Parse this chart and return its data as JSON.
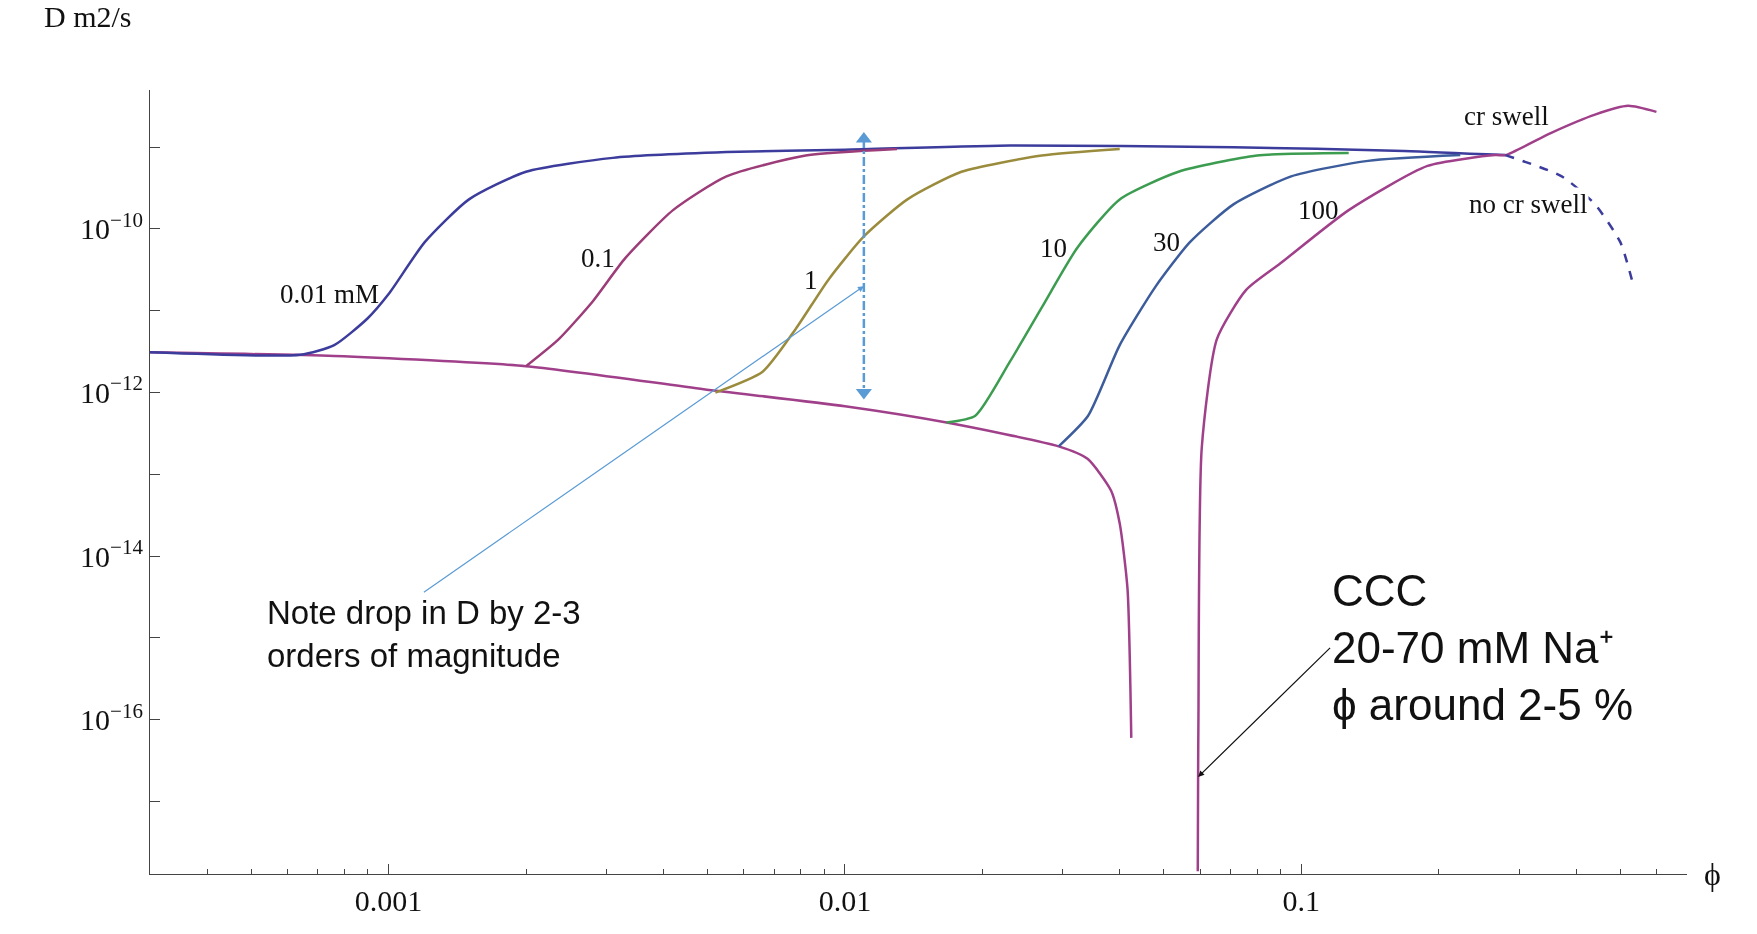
{
  "chart_data": {
    "type": "line",
    "xlabel": "ϕ",
    "ylabel": "D m2/s",
    "log": "xy",
    "marker": "none",
    "xlim": [
      0.0003,
      0.7
    ],
    "xticks": [
      0.001,
      0.01,
      0.1
    ],
    "ylim": [
      1.3e-18,
      5e-09
    ],
    "yticks": [
      {
        "value": 1e-17,
        "label": null
      },
      {
        "value": 1e-16,
        "label": "10$^{−16}$"
      },
      {
        "value": 1e-15,
        "label": null
      },
      {
        "value": 1e-14,
        "label": "10$^{−14}$"
      },
      {
        "value": 1e-13,
        "label": null
      },
      {
        "value": 1e-12,
        "label": "10$^{−12}$"
      },
      {
        "value": 1e-11,
        "label": null
      },
      {
        "value": 1e-10,
        "label": "10$^{−10}$"
      },
      {
        "value": 1e-09,
        "label": null
      }
    ],
    "series": [
      {
        "color": "#a0408a",
        "x": [
          0.0003,
          0.00076,
          0.002,
          0.0049,
          0.01,
          0.0167,
          0.0294,
          0.034,
          0.0383,
          0.04,
          0.0416,
          0.0424
        ],
        "values": [
          3.1e-12,
          2.8e-12,
          2.1e-12,
          1.1e-12,
          6.8e-13,
          4.3e-13,
          2.2e-13,
          1.55e-13,
          6.3e-14,
          2.5e-14,
          4e-15,
          6e-17
        ]
      },
      {
        "color": "#3c3c9c",
        "x": [
          0.0003,
          0.00064,
          0.00076,
          0.0009,
          0.001,
          0.0012,
          0.0015,
          0.002,
          0.0031,
          0.0055,
          0.01,
          0.023,
          0.071,
          0.168,
          0.28
        ],
        "values": [
          3.1e-12,
          2.9e-12,
          3.8e-12,
          8.1e-12,
          1.6e-11,
          6.9e-11,
          2.3e-10,
          5e-10,
          7.4e-10,
          8.7e-10,
          9.3e-10,
          1.05e-09,
          1e-09,
          9e-10,
          8e-10
        ]
      },
      {
        "color": "#9c3c78",
        "x": [
          0.002,
          0.00236,
          0.0028,
          0.0033,
          0.0042,
          0.0055,
          0.0082,
          0.013
        ],
        "values": [
          2.1e-12,
          4.5e-12,
          1.3e-11,
          4.4e-11,
          1.7e-10,
          4.4e-10,
          7.9e-10,
          9.5e-10
        ]
      },
      {
        "color": "#9a8c3c",
        "x": [
          0.0052,
          0.0066,
          0.0078,
          0.0092,
          0.011,
          0.0137,
          0.018,
          0.027,
          0.04
        ],
        "values": [
          1e-12,
          1.8e-12,
          6e-12,
          2.4e-11,
          8.1e-11,
          2.3e-10,
          5e-10,
          7.9e-10,
          9.5e-10
        ]
      },
      {
        "color": "#3c9c50",
        "x": [
          0.0167,
          0.0193,
          0.023,
          0.027,
          0.0323,
          0.04,
          0.0538,
          0.08,
          0.127
        ],
        "values": [
          4.3e-13,
          5.2e-13,
          2.4e-12,
          1.1e-11,
          5.9e-11,
          2.3e-10,
          5e-10,
          7.9e-10,
          8.5e-10
        ]
      },
      {
        "color": "#3c5c9c",
        "x": [
          0.0294,
          0.0341,
          0.04,
          0.048,
          0.057,
          0.071,
          0.095,
          0.14,
          0.223
        ],
        "values": [
          2.2e-13,
          5.2e-13,
          3.8e-12,
          2e-11,
          6.9e-11,
          2e-10,
          4.4e-10,
          6.8e-10,
          8e-10
        ]
      },
      {
        "color": "#a0408a",
        "x": [
          0.0593,
          0.0594,
          0.0595,
          0.0605,
          0.0653,
          0.0757,
          0.09,
          0.127,
          0.189,
          0.266,
          0.28,
          0.353,
          0.44,
          0.52,
          0.6
        ],
        "values": [
          1.4e-18,
          2e-17,
          1e-16,
          2.1e-13,
          4.5e-12,
          1.8e-11,
          3.8e-11,
          1.7e-10,
          5.9e-10,
          8e-10,
          8e-10,
          1.5e-09,
          2.5e-09,
          3.2e-09,
          2.7e-09
        ]
      },
      {
        "color": "#3c3c9c",
        "line_style": "dashed",
        "x": [
          0.28,
          0.372,
          0.44,
          0.5,
          0.53
        ],
        "values": [
          8e-10,
          4.4e-10,
          2e-10,
          6.9e-11,
          2.4e-11
        ]
      },
      {
        "color": "#5b9bd5",
        "line_style": "dotted",
        "marker": "triangle",
        "x": [
          0.011,
          0.011
        ],
        "values": [
          1.26e-09,
          1e-12
        ]
      }
    ],
    "annotations": [
      {
        "text": "0.01 mM",
        "x": 0.001,
        "y": 1.6e-11
      },
      {
        "text": "0.1",
        "x": 0.0033,
        "y": 4.4e-11
      },
      {
        "text": "1",
        "x": 0.0092,
        "y": 2.4e-11
      },
      {
        "text": "10",
        "x": 0.0323,
        "y": 5.9e-11
      },
      {
        "text": "30",
        "x": 0.057,
        "y": 6.9e-11
      },
      {
        "text": "100",
        "x": 0.127,
        "y": 1.7e-10
      },
      {
        "text": "cr swell",
        "x": 0.353,
        "y": 1.5e-09
      },
      {
        "text": "no cr swell",
        "x": 0.44,
        "y": 2e-10
      },
      {
        "text": "Note drop in D by 2-3\norders of magnitude",
        "x": 0.011,
        "y": 2e-11
      },
      {
        "text": "CCC\n20-70 mM Na⁺\nϕ around 2-5 %",
        "x": 0.0594,
        "y": 2e-17
      }
    ]
  }
}
